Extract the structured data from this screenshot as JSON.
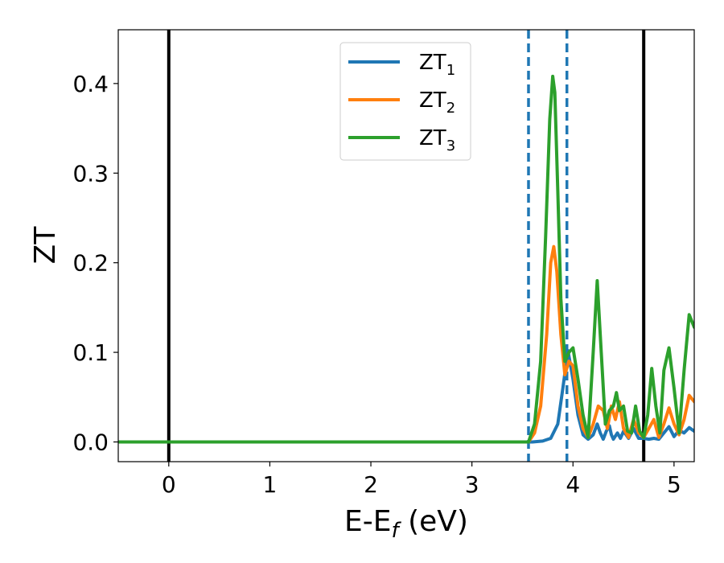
{
  "chart_data": {
    "type": "line",
    "xlabel": "E-E",
    "xlabel_sub": "f",
    "xlabel_unit": " (eV)",
    "ylabel": "ZT",
    "xlim": [
      -0.5,
      5.2
    ],
    "ylim": [
      -0.022,
      0.46
    ],
    "xticks": [
      0,
      1,
      2,
      3,
      4,
      5
    ],
    "xtick_labels": [
      "0",
      "1",
      "2",
      "3",
      "4",
      "5"
    ],
    "yticks": [
      0.0,
      0.1,
      0.2,
      0.3,
      0.4
    ],
    "ytick_labels": [
      "0.0",
      "0.1",
      "0.2",
      "0.3",
      "0.4"
    ],
    "grid": false,
    "legend_position": "top-center",
    "vlines": [
      {
        "x": 0.0,
        "style": "solid",
        "color": "#000000"
      },
      {
        "x": 4.7,
        "style": "solid",
        "color": "#000000"
      },
      {
        "x": 3.56,
        "style": "dashed",
        "color": "#1f77b4"
      },
      {
        "x": 3.94,
        "style": "dashed",
        "color": "#1f77b4"
      }
    ],
    "series": [
      {
        "name": "ZT",
        "sub": "1",
        "color": "#1f77b4",
        "x": [
          -0.5,
          3.5,
          3.6,
          3.7,
          3.78,
          3.85,
          3.9,
          3.95,
          4.0,
          4.05,
          4.1,
          4.15,
          4.2,
          4.24,
          4.27,
          4.3,
          4.33,
          4.36,
          4.38,
          4.4,
          4.44,
          4.47,
          4.5,
          4.55,
          4.6,
          4.65,
          4.7,
          4.75,
          4.8,
          4.85,
          4.9,
          4.95,
          5.0,
          5.05,
          5.1,
          5.15,
          5.2
        ],
        "y": [
          0.0,
          0.0,
          0.0,
          0.001,
          0.004,
          0.02,
          0.06,
          0.102,
          0.07,
          0.03,
          0.008,
          0.003,
          0.008,
          0.02,
          0.01,
          0.003,
          0.012,
          0.018,
          0.008,
          0.003,
          0.01,
          0.004,
          0.012,
          0.004,
          0.015,
          0.004,
          0.004,
          0.003,
          0.004,
          0.003,
          0.01,
          0.017,
          0.006,
          0.013,
          0.01,
          0.016,
          0.012
        ]
      },
      {
        "name": "ZT",
        "sub": "2",
        "color": "#ff7f0e",
        "x": [
          -0.5,
          3.5,
          3.56,
          3.62,
          3.68,
          3.74,
          3.78,
          3.81,
          3.84,
          3.88,
          3.92,
          3.96,
          4.0,
          4.05,
          4.1,
          4.15,
          4.2,
          4.25,
          4.3,
          4.34,
          4.38,
          4.42,
          4.46,
          4.5,
          4.55,
          4.6,
          4.65,
          4.7,
          4.75,
          4.8,
          4.85,
          4.9,
          4.95,
          5.0,
          5.05,
          5.1,
          5.15,
          5.2
        ],
        "y": [
          0.0,
          0.0,
          0.0,
          0.01,
          0.04,
          0.12,
          0.2,
          0.218,
          0.19,
          0.12,
          0.075,
          0.09,
          0.085,
          0.04,
          0.015,
          0.005,
          0.02,
          0.04,
          0.035,
          0.015,
          0.04,
          0.025,
          0.045,
          0.015,
          0.005,
          0.025,
          0.01,
          0.005,
          0.015,
          0.025,
          0.005,
          0.02,
          0.038,
          0.02,
          0.008,
          0.025,
          0.052,
          0.045
        ]
      },
      {
        "name": "ZT",
        "sub": "3",
        "color": "#2ca02c",
        "x": [
          -0.5,
          3.5,
          3.56,
          3.62,
          3.68,
          3.73,
          3.77,
          3.8,
          3.82,
          3.85,
          3.88,
          3.92,
          3.96,
          4.0,
          4.05,
          4.1,
          4.15,
          4.2,
          4.24,
          4.28,
          4.32,
          4.36,
          4.4,
          4.43,
          4.46,
          4.5,
          4.54,
          4.58,
          4.62,
          4.66,
          4.7,
          4.74,
          4.78,
          4.82,
          4.86,
          4.9,
          4.95,
          5.0,
          5.05,
          5.1,
          5.15,
          5.2
        ],
        "y": [
          0.0,
          0.0,
          0.0,
          0.02,
          0.09,
          0.23,
          0.36,
          0.408,
          0.39,
          0.28,
          0.16,
          0.09,
          0.1,
          0.105,
          0.07,
          0.03,
          0.005,
          0.1,
          0.18,
          0.1,
          0.02,
          0.035,
          0.04,
          0.055,
          0.035,
          0.04,
          0.012,
          0.01,
          0.04,
          0.012,
          0.005,
          0.03,
          0.082,
          0.04,
          0.01,
          0.08,
          0.105,
          0.06,
          0.01,
          0.08,
          0.142,
          0.128
        ]
      }
    ]
  }
}
